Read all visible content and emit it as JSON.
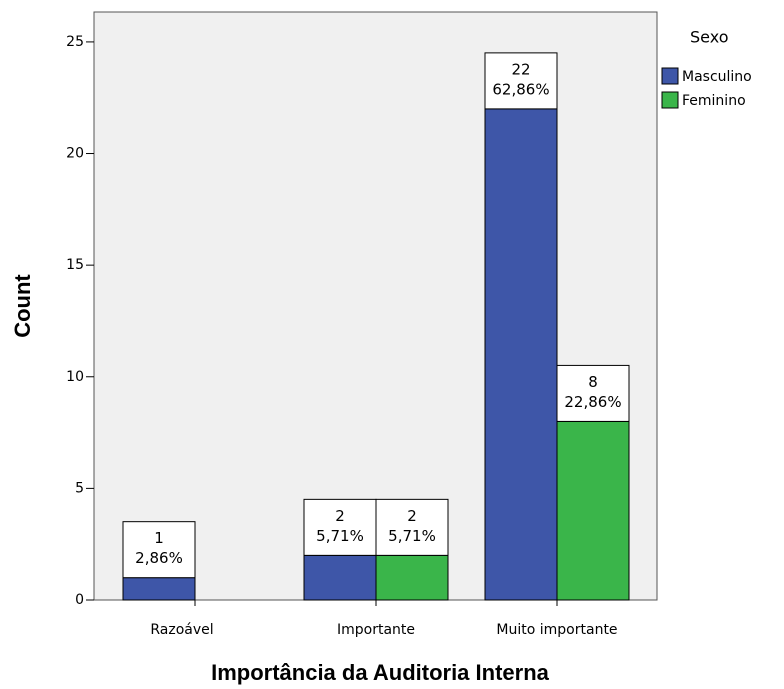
{
  "chart_data": {
    "type": "bar",
    "x_label": "Importância da Auditoria Interna",
    "y_label": "Count",
    "legend_title": "Sexo",
    "categories": [
      "Razoável",
      "Importante",
      "Muito importante"
    ],
    "series": [
      {
        "name": "Masculino",
        "color": "#3e56a8",
        "values": [
          1,
          2,
          22
        ],
        "percentages": [
          2.86,
          5.71,
          62.86
        ],
        "percentage_labels": [
          "2,86%",
          "5,71%",
          "62,86%"
        ]
      },
      {
        "name": "Feminino",
        "color": "#3ab54a",
        "values": [
          null,
          2,
          8
        ],
        "percentages": [
          null,
          5.71,
          22.86
        ],
        "percentage_labels": [
          null,
          "5,71%",
          "22,86%"
        ]
      }
    ],
    "ylim": [
      0,
      26.34
    ],
    "yticks": [
      0,
      5,
      10,
      15,
      20,
      25
    ],
    "legend": "right"
  }
}
